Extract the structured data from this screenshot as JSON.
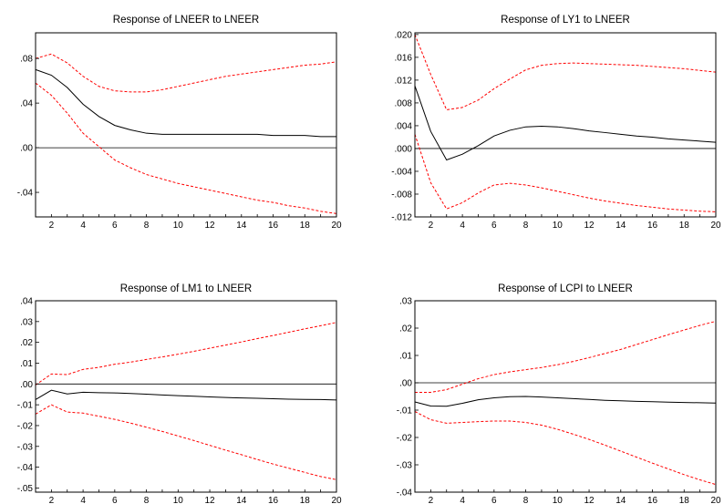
{
  "chart_data": [
    {
      "type": "line",
      "title": "Response of LNEER to LNEER",
      "xlabel": "",
      "ylabel": "",
      "x": [
        1,
        2,
        3,
        4,
        5,
        6,
        7,
        8,
        9,
        10,
        11,
        12,
        13,
        14,
        15,
        16,
        17,
        18,
        19,
        20
      ],
      "xticks": [
        2,
        4,
        6,
        8,
        10,
        12,
        14,
        16,
        18,
        20
      ],
      "ylim": [
        -0.062,
        0.103
      ],
      "yticks": [
        0.08,
        0.04,
        0.0,
        -0.04
      ],
      "ytick_labels": [
        ".08",
        ".04",
        ".00",
        "-.04"
      ],
      "zero_line": true,
      "grid": false,
      "series": [
        {
          "color": "#000000",
          "style": "solid",
          "values": [
            0.07,
            0.065,
            0.054,
            0.039,
            0.028,
            0.02,
            0.016,
            0.013,
            0.012,
            0.012,
            0.012,
            0.012,
            0.012,
            0.012,
            0.012,
            0.011,
            0.011,
            0.011,
            0.01,
            0.01
          ]
        },
        {
          "color": "#ff0000",
          "style": "dashed",
          "values": [
            0.08,
            0.084,
            0.076,
            0.064,
            0.055,
            0.051,
            0.05,
            0.05,
            0.052,
            0.055,
            0.058,
            0.061,
            0.064,
            0.066,
            0.068,
            0.07,
            0.072,
            0.074,
            0.075,
            0.077
          ]
        },
        {
          "color": "#ff0000",
          "style": "dashed",
          "values": [
            0.058,
            0.047,
            0.031,
            0.013,
            0.001,
            -0.011,
            -0.018,
            -0.024,
            -0.028,
            -0.032,
            -0.035,
            -0.038,
            -0.041,
            -0.044,
            -0.047,
            -0.049,
            -0.052,
            -0.054,
            -0.057,
            -0.059
          ]
        }
      ]
    },
    {
      "type": "line",
      "title": "Response of LY1 to LNEER",
      "xlabel": "",
      "ylabel": "",
      "x": [
        1,
        2,
        3,
        4,
        5,
        6,
        7,
        8,
        9,
        10,
        11,
        12,
        13,
        14,
        15,
        16,
        17,
        18,
        19,
        20
      ],
      "xticks": [
        2,
        4,
        6,
        8,
        10,
        12,
        14,
        16,
        18,
        20
      ],
      "ylim": [
        -0.012,
        0.0203
      ],
      "yticks": [
        0.02,
        0.016,
        0.012,
        0.008,
        0.004,
        0.0,
        -0.004,
        -0.008,
        -0.012
      ],
      "ytick_labels": [
        ".020",
        ".016",
        ".012",
        ".008",
        ".004",
        ".000",
        "-.004",
        "-.008",
        "-.012"
      ],
      "zero_line": true,
      "grid": false,
      "series": [
        {
          "color": "#000000",
          "style": "solid",
          "values": [
            0.011,
            0.003,
            -0.002,
            -0.001,
            0.0005,
            0.0022,
            0.0032,
            0.0038,
            0.0039,
            0.0038,
            0.0035,
            0.0031,
            0.0028,
            0.0025,
            0.0022,
            0.002,
            0.0017,
            0.0015,
            0.0013,
            0.0011
          ]
        },
        {
          "color": "#ff0000",
          "style": "dashed",
          "values": [
            0.02,
            0.013,
            0.0068,
            0.0072,
            0.0085,
            0.0105,
            0.0122,
            0.0138,
            0.0146,
            0.0149,
            0.015,
            0.0149,
            0.0148,
            0.0147,
            0.0146,
            0.0144,
            0.0142,
            0.014,
            0.0137,
            0.0134
          ]
        },
        {
          "color": "#ff0000",
          "style": "dashed",
          "values": [
            0.0025,
            -0.006,
            -0.0106,
            -0.0095,
            -0.0078,
            -0.0064,
            -0.0061,
            -0.0064,
            -0.0069,
            -0.0075,
            -0.0081,
            -0.0087,
            -0.0092,
            -0.0096,
            -0.01,
            -0.0103,
            -0.0106,
            -0.0108,
            -0.011,
            -0.0111
          ]
        }
      ]
    },
    {
      "type": "line",
      "title": "Response of LM1 to LNEER",
      "xlabel": "",
      "ylabel": "",
      "x": [
        1,
        2,
        3,
        4,
        5,
        6,
        7,
        8,
        9,
        10,
        11,
        12,
        13,
        14,
        15,
        16,
        17,
        18,
        19,
        20
      ],
      "xticks": [
        2,
        4,
        6,
        8,
        10,
        12,
        14,
        16,
        18,
        20
      ],
      "ylim": [
        -0.052,
        0.04
      ],
      "yticks": [
        0.04,
        0.03,
        0.02,
        0.01,
        0.0,
        -0.01,
        -0.02,
        -0.03,
        -0.04,
        -0.05
      ],
      "ytick_labels": [
        ".04",
        ".03",
        ".02",
        ".01",
        ".00",
        "-.01",
        "-.02",
        "-.03",
        "-.04",
        "-.05"
      ],
      "zero_line": true,
      "grid": false,
      "series": [
        {
          "color": "#000000",
          "style": "solid",
          "values": [
            -0.0075,
            -0.003,
            -0.0048,
            -0.004,
            -0.0042,
            -0.0043,
            -0.0046,
            -0.0049,
            -0.0053,
            -0.0056,
            -0.0059,
            -0.0062,
            -0.0065,
            -0.0067,
            -0.0069,
            -0.0071,
            -0.0073,
            -0.0074,
            -0.0075,
            -0.0077
          ]
        },
        {
          "color": "#ff0000",
          "style": "dashed",
          "values": [
            -0.0005,
            0.0048,
            0.0045,
            0.007,
            0.008,
            0.0095,
            0.0105,
            0.0118,
            0.013,
            0.0143,
            0.0157,
            0.0172,
            0.0187,
            0.0202,
            0.0218,
            0.0233,
            0.0249,
            0.0265,
            0.028,
            0.0296
          ]
        },
        {
          "color": "#ff0000",
          "style": "dashed",
          "values": [
            -0.0145,
            -0.01,
            -0.0135,
            -0.014,
            -0.0155,
            -0.017,
            -0.0188,
            -0.0208,
            -0.0228,
            -0.025,
            -0.0272,
            -0.0295,
            -0.0318,
            -0.034,
            -0.0363,
            -0.0385,
            -0.0405,
            -0.0425,
            -0.0445,
            -0.046
          ]
        }
      ]
    },
    {
      "type": "line",
      "title": "Response of LCPI to LNEER",
      "xlabel": "",
      "ylabel": "",
      "x": [
        1,
        2,
        3,
        4,
        5,
        6,
        7,
        8,
        9,
        10,
        11,
        12,
        13,
        14,
        15,
        16,
        17,
        18,
        19,
        20
      ],
      "xticks": [
        2,
        4,
        6,
        8,
        10,
        12,
        14,
        16,
        18,
        20
      ],
      "ylim": [
        -0.04,
        0.03
      ],
      "yticks": [
        0.03,
        0.02,
        0.01,
        0.0,
        -0.01,
        -0.02,
        -0.03,
        -0.04
      ],
      "ytick_labels": [
        ".03",
        ".02",
        ".01",
        ".00",
        "-.01",
        "-.02",
        "-.03",
        "-.04"
      ],
      "zero_line": true,
      "grid": false,
      "series": [
        {
          "color": "#000000",
          "style": "solid",
          "values": [
            -0.007,
            -0.0085,
            -0.0086,
            -0.0075,
            -0.0062,
            -0.0055,
            -0.0051,
            -0.005,
            -0.0052,
            -0.0055,
            -0.0058,
            -0.0061,
            -0.0064,
            -0.0066,
            -0.0068,
            -0.0069,
            -0.0071,
            -0.0072,
            -0.0073,
            -0.0074
          ]
        },
        {
          "color": "#ff0000",
          "style": "dashed",
          "values": [
            -0.0035,
            -0.0035,
            -0.0025,
            -0.0005,
            0.0015,
            0.003,
            0.004,
            0.0048,
            0.0056,
            0.0066,
            0.0078,
            0.0092,
            0.0107,
            0.0122,
            0.014,
            0.0158,
            0.0176,
            0.0193,
            0.021,
            0.0225
          ]
        },
        {
          "color": "#ff0000",
          "style": "dashed",
          "values": [
            -0.0105,
            -0.0135,
            -0.0148,
            -0.0145,
            -0.0142,
            -0.014,
            -0.014,
            -0.0145,
            -0.0155,
            -0.017,
            -0.0188,
            -0.0207,
            -0.0228,
            -0.025,
            -0.0272,
            -0.0294,
            -0.0315,
            -0.0336,
            -0.0355,
            -0.0372
          ]
        }
      ]
    }
  ]
}
